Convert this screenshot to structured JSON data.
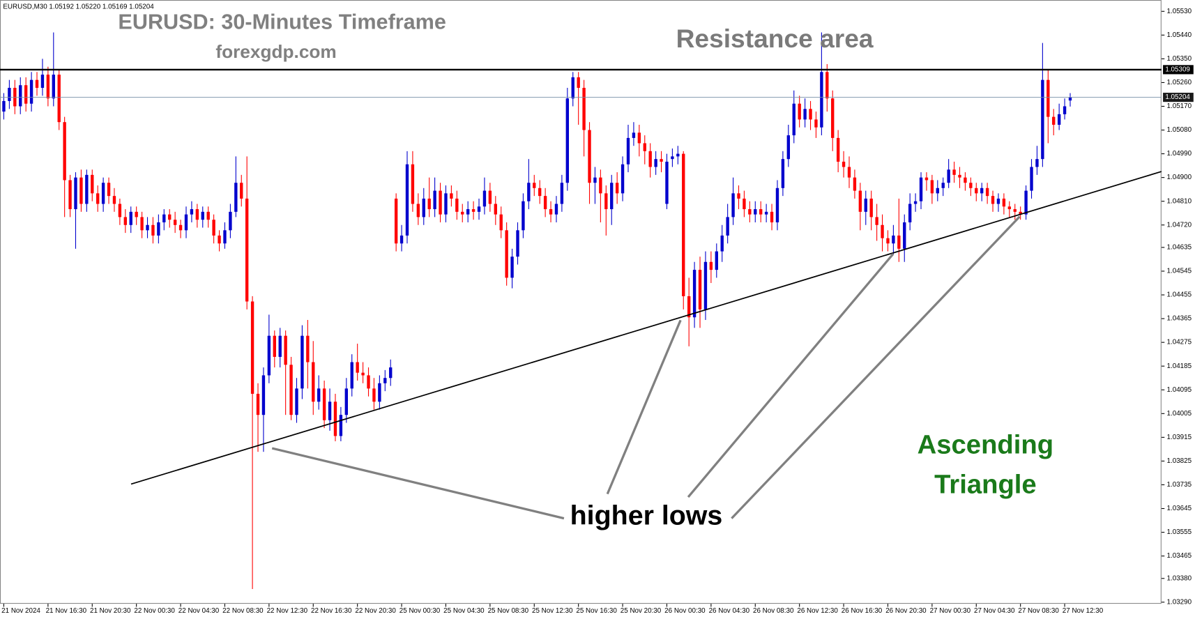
{
  "chart_data": {
    "type": "candlestick",
    "header": "EURUSD,M30  1.05192 1.05220 1.05169 1.05204",
    "title": "EURUSD: 30-Minutes Timeframe",
    "subtitle": "forexgdp.com",
    "annotations": {
      "resistance": "Resistance area",
      "higher_lows": "higher lows",
      "pattern": [
        "Ascending",
        "Triangle"
      ]
    },
    "up_color": "#0000cd",
    "down_color": "#ff0000",
    "ylim": [
      1.03284,
      1.05573
    ],
    "yticks": [
      {
        "value": 1.0553,
        "label": "1.05530"
      },
      {
        "value": 1.0544,
        "label": "1.05440"
      },
      {
        "value": 1.0535,
        "label": "1.05350"
      },
      {
        "value": 1.0526,
        "label": "1.05260"
      },
      {
        "value": 1.0517,
        "label": "1.05170"
      },
      {
        "value": 1.0508,
        "label": "1.05080"
      },
      {
        "value": 1.0499,
        "label": "1.04990"
      },
      {
        "value": 1.049,
        "label": "1.04900"
      },
      {
        "value": 1.0481,
        "label": "1.04810"
      },
      {
        "value": 1.0472,
        "label": "1.04720"
      },
      1.04635,
      1.04545,
      1.04455,
      1.04365,
      1.04275,
      1.04185,
      1.04095,
      1.04005,
      1.03915,
      1.03825,
      1.03735,
      1.03645,
      1.03555,
      1.03465,
      {
        "value": 1.0338,
        "label": "1.03380"
      },
      {
        "value": 1.0329,
        "label": "1.03290"
      }
    ],
    "resistance_level": 1.05309,
    "price_line": 1.05204,
    "categories": [
      "21 Nov 2024",
      null,
      null,
      null,
      null,
      null,
      null,
      null,
      "21 Nov 16:30",
      null,
      null,
      null,
      null,
      null,
      null,
      null,
      "21 Nov 20:30",
      null,
      null,
      null,
      null,
      null,
      null,
      null,
      "22 Nov 00:30",
      null,
      null,
      null,
      null,
      null,
      null,
      null,
      "22 Nov 04:30",
      null,
      null,
      null,
      null,
      null,
      null,
      null,
      "22 Nov 08:30",
      null,
      null,
      null,
      null,
      null,
      null,
      null,
      "22 Nov 12:30",
      null,
      null,
      null,
      null,
      null,
      null,
      null,
      "22 Nov 16:30",
      null,
      null,
      null,
      null,
      null,
      null,
      null,
      "22 Nov 20:30",
      null,
      null,
      null,
      null,
      null,
      null,
      null,
      "25 Nov 00:30",
      null,
      null,
      null,
      null,
      null,
      null,
      null,
      "25 Nov 04:30",
      null,
      null,
      null,
      null,
      null,
      null,
      null,
      "25 Nov 08:30",
      null,
      null,
      null,
      null,
      null,
      null,
      null,
      "25 Nov 12:30",
      null,
      null,
      null,
      null,
      null,
      null,
      null,
      "25 Nov 16:30",
      null,
      null,
      null,
      null,
      null,
      null,
      null,
      "25 Nov 20:30",
      null,
      null,
      null,
      null,
      null,
      null,
      null,
      "26 Nov 00:30",
      null,
      null,
      null,
      null,
      null,
      null,
      null,
      "26 Nov 04:30",
      null,
      null,
      null,
      null,
      null,
      null,
      null,
      "26 Nov 08:30",
      null,
      null,
      null,
      null,
      null,
      null,
      null,
      "26 Nov 12:30",
      null,
      null,
      null,
      null,
      null,
      null,
      null,
      "26 Nov 16:30",
      null,
      null,
      null,
      null,
      null,
      null,
      null,
      "26 Nov 20:30",
      null,
      null,
      null,
      null,
      null,
      null,
      null,
      "27 Nov 00:30",
      null,
      null,
      null,
      null,
      null,
      null,
      null,
      "27 Nov 04:30",
      null,
      null,
      null,
      null,
      null,
      null,
      null,
      "27 Nov 08:30",
      null,
      null,
      null,
      null,
      null,
      null,
      null,
      "27 Nov 12:30",
      null
    ],
    "open": [
      1.0515,
      1.0519,
      1.0524,
      1.0517,
      1.0525,
      1.0518,
      1.0527,
      1.0524,
      1.0529,
      1.052,
      1.0529,
      1.0511,
      1.0489,
      1.0478,
      1.049,
      1.048,
      1.0491,
      1.0484,
      1.048,
      1.0488,
      1.0483,
      1.048,
      1.0475,
      1.0472,
      1.0477,
      1.0475,
      1.047,
      1.0472,
      1.0468,
      1.0473,
      1.0476,
      1.0474,
      1.0472,
      1.047,
      1.0476,
      1.0478,
      1.0474,
      1.0477,
      1.0474,
      1.0468,
      1.0465,
      1.047,
      1.0477,
      1.0488,
      1.0482,
      1.0443,
      1.0408,
      1.04,
      1.0415,
      1.043,
      1.0422,
      1.043,
      1.0419,
      1.04,
      1.041,
      1.043,
      1.042,
      1.0405,
      1.041,
      1.0398,
      1.0405,
      1.0392,
      1.04,
      1.041,
      1.042,
      1.0416,
      1.0415,
      1.041,
      1.0405,
      1.0412,
      1.0414,
      1.0482,
      1.0465,
      1.0468,
      1.0495,
      1.048,
      1.0475,
      1.0482,
      1.0478,
      1.0485,
      1.0476,
      1.0484,
      1.0482,
      1.0477,
      1.0476,
      1.0478,
      1.0477,
      1.0479,
      1.0485,
      1.048,
      1.0476,
      1.047,
      1.0452,
      1.046,
      1.047,
      1.0481,
      1.0488,
      1.0486,
      1.0483,
      1.0478,
      1.0476,
      1.048,
      1.0488,
      1.052,
      1.0528,
      1.0524,
      1.0508,
      1.0488,
      1.049,
      1.0484,
      1.0478,
      1.0488,
      1.0484,
      1.0495,
      1.0505,
      1.0507,
      1.0503,
      1.05,
      1.0494,
      1.0497,
      1.048,
      1.0497,
      1.0498,
      1.0499,
      1.0445,
      1.0437,
      1.0455,
      1.044,
      1.0458,
      1.0455,
      1.0462,
      1.0468,
      1.0475,
      1.0484,
      1.0482,
      1.0478,
      1.0476,
      1.0478,
      1.0476,
      1.0477,
      1.0473,
      1.0486,
      1.0497,
      1.0506,
      1.0518,
      1.0512,
      1.0516,
      1.0512,
      1.0509,
      1.053,
      1.052,
      1.0505,
      1.0496,
      1.0494,
      1.049,
      1.0485,
      1.0477,
      1.0482,
      1.0475,
      1.0472,
      1.0467,
      1.0465,
      1.0468,
      1.0463,
      1.0473,
      1.048,
      1.0481,
      1.049,
      1.0489,
      1.0484,
      1.0486,
      1.0488,
      1.0493,
      1.0491,
      1.049,
      1.0488,
      1.0486,
      1.0484,
      1.0486,
      1.0483,
      1.048,
      1.0482,
      1.0479,
      1.0478,
      1.0477,
      1.0476,
      1.0485,
      1.0494,
      1.0497,
      1.0527,
      1.0513,
      1.051,
      1.0514,
      1.05192
    ],
    "high": [
      1.0522,
      1.0527,
      1.0527,
      1.0528,
      1.0528,
      1.053,
      1.053,
      1.0535,
      1.0532,
      1.0545,
      1.0531,
      1.0513,
      1.0491,
      1.0492,
      1.0493,
      1.0493,
      1.0493,
      1.0487,
      1.049,
      1.049,
      1.0486,
      1.0482,
      1.0478,
      1.0479,
      1.0479,
      1.0477,
      1.0475,
      1.0475,
      1.0476,
      1.0478,
      1.0478,
      1.0477,
      1.0474,
      1.0479,
      1.0481,
      1.048,
      1.0479,
      1.0479,
      1.0476,
      1.047,
      1.0473,
      1.048,
      1.0498,
      1.0491,
      1.0498,
      1.0445,
      1.0412,
      1.0418,
      1.0438,
      1.0432,
      1.0433,
      1.0432,
      1.0422,
      1.0414,
      1.0434,
      1.0436,
      1.0428,
      1.0415,
      1.0413,
      1.041,
      1.0408,
      1.0403,
      1.0414,
      1.0423,
      1.0427,
      1.042,
      1.0418,
      1.0414,
      1.0415,
      1.0417,
      1.0421,
      1.0484,
      1.0472,
      1.05,
      1.05,
      1.0484,
      1.0486,
      1.049,
      1.049,
      1.0488,
      1.0487,
      1.0487,
      1.0485,
      1.048,
      1.0481,
      1.0481,
      1.0482,
      1.049,
      1.0488,
      1.0483,
      1.0479,
      1.0473,
      1.0463,
      1.0473,
      1.0484,
      1.0497,
      1.0491,
      1.0489,
      1.0486,
      1.0481,
      1.0483,
      1.0491,
      1.0524,
      1.053,
      1.053,
      1.0527,
      1.0511,
      1.0494,
      1.0493,
      1.0487,
      1.0491,
      1.0492,
      1.0498,
      1.051,
      1.0511,
      1.051,
      1.0506,
      1.0503,
      1.05,
      1.05,
      1.0499,
      1.0501,
      1.0502,
      1.05,
      1.0452,
      1.0458,
      1.046,
      1.0462,
      1.0462,
      1.0465,
      1.0472,
      1.048,
      1.049,
      1.0487,
      1.0485,
      1.0481,
      1.0481,
      1.0481,
      1.048,
      1.048,
      1.0489,
      1.05,
      1.051,
      1.0523,
      1.0521,
      1.052,
      1.0519,
      1.0515,
      1.0545,
      1.0533,
      1.0523,
      1.0508,
      1.05,
      1.0498,
      1.0493,
      1.0488,
      1.0485,
      1.0485,
      1.048,
      1.0476,
      1.047,
      1.0472,
      1.0482,
      1.0476,
      1.0484,
      1.0484,
      1.0492,
      1.0492,
      1.0491,
      1.0489,
      1.049,
      1.0497,
      1.0496,
      1.0494,
      1.0492,
      1.049,
      1.0488,
      1.0488,
      1.0488,
      1.0485,
      1.0484,
      1.0484,
      1.0481,
      1.048,
      1.0479,
      1.0487,
      1.0497,
      1.0502,
      1.0541,
      1.0531,
      1.0516,
      1.0518,
      1.052,
      1.0522
    ],
    "low": [
      1.0512,
      1.0516,
      1.0514,
      1.0514,
      1.0515,
      1.0515,
      1.0521,
      1.0521,
      1.0517,
      1.0517,
      1.0508,
      1.0475,
      1.0475,
      1.0463,
      1.0477,
      1.0477,
      1.0481,
      1.0477,
      1.0477,
      1.048,
      1.0477,
      1.0472,
      1.0469,
      1.0469,
      1.0472,
      1.0467,
      1.0467,
      1.0465,
      1.0465,
      1.047,
      1.0471,
      1.0469,
      1.0467,
      1.0467,
      1.0473,
      1.0471,
      1.0471,
      1.0471,
      1.0465,
      1.0462,
      1.0463,
      1.0467,
      1.0475,
      1.0479,
      1.044,
      1.0334,
      1.0386,
      1.0386,
      1.0412,
      1.0418,
      1.0418,
      1.04,
      1.0398,
      1.0397,
      1.0406,
      1.041,
      1.04,
      1.0402,
      1.0395,
      1.0394,
      1.039,
      1.039,
      1.0397,
      1.0407,
      1.0413,
      1.0412,
      1.0407,
      1.0402,
      1.0402,
      1.0409,
      1.0411,
      1.0462,
      1.0462,
      1.0465,
      1.0477,
      1.0472,
      1.0472,
      1.0475,
      1.0475,
      1.0473,
      1.0473,
      1.0479,
      1.0474,
      1.0473,
      1.0473,
      1.0474,
      1.0474,
      1.0476,
      1.0477,
      1.0472,
      1.0467,
      1.0449,
      1.0448,
      1.0457,
      1.0467,
      1.0478,
      1.0483,
      1.048,
      1.0475,
      1.0473,
      1.0473,
      1.0477,
      1.0485,
      1.0517,
      1.051,
      1.0498,
      1.048,
      1.048,
      1.0473,
      1.0468,
      1.0472,
      1.048,
      1.0481,
      1.0492,
      1.0502,
      1.0498,
      1.0495,
      1.049,
      1.0491,
      1.0492,
      1.0478,
      1.0494,
      1.0495,
      1.044,
      1.0426,
      1.0433,
      1.0433,
      1.0436,
      1.045,
      1.0452,
      1.0458,
      1.0465,
      1.0472,
      1.0478,
      1.0475,
      1.0473,
      1.0473,
      1.0473,
      1.0473,
      1.047,
      1.047,
      1.0483,
      1.0494,
      1.0503,
      1.0509,
      1.0509,
      1.0508,
      1.0505,
      1.0506,
      1.0515,
      1.05,
      1.0492,
      1.049,
      1.0486,
      1.0482,
      1.047,
      1.0472,
      1.047,
      1.0466,
      1.0462,
      1.0462,
      1.0461,
      1.0458,
      1.0458,
      1.047,
      1.0477,
      1.0478,
      1.0485,
      1.048,
      1.0481,
      1.0483,
      1.0486,
      1.0488,
      1.0486,
      1.0485,
      1.0483,
      1.0481,
      1.0481,
      1.048,
      1.0477,
      1.0477,
      1.0476,
      1.0475,
      1.0474,
      1.0474,
      1.0474,
      1.0482,
      1.0491,
      1.0494,
      1.0503,
      1.0506,
      1.0508,
      1.0512,
      1.05169
    ],
    "close": [
      1.0519,
      1.0524,
      1.0517,
      1.0525,
      1.0518,
      1.0527,
      1.0524,
      1.0529,
      1.052,
      1.0529,
      1.0511,
      1.0489,
      1.0478,
      1.049,
      1.048,
      1.0491,
      1.0484,
      1.048,
      1.0488,
      1.0483,
      1.048,
      1.0475,
      1.0472,
      1.0477,
      1.0475,
      1.047,
      1.0472,
      1.0468,
      1.0473,
      1.0476,
      1.0474,
      1.0472,
      1.047,
      1.0476,
      1.0478,
      1.0474,
      1.0477,
      1.0474,
      1.0468,
      1.0465,
      1.047,
      1.0477,
      1.0488,
      1.0482,
      1.0443,
      1.0408,
      1.04,
      1.0415,
      1.043,
      1.0422,
      1.043,
      1.0419,
      1.04,
      1.041,
      1.043,
      1.042,
      1.0405,
      1.041,
      1.0398,
      1.0405,
      1.0392,
      1.04,
      1.041,
      1.042,
      1.0416,
      1.0415,
      1.041,
      1.0405,
      1.0412,
      1.0414,
      1.0418,
      1.0465,
      1.0468,
      1.0495,
      1.048,
      1.0475,
      1.0482,
      1.0478,
      1.0485,
      1.0476,
      1.0484,
      1.0482,
      1.0477,
      1.0476,
      1.0478,
      1.0477,
      1.0479,
      1.0485,
      1.048,
      1.0476,
      1.047,
      1.0452,
      1.046,
      1.047,
      1.0481,
      1.0488,
      1.0486,
      1.0483,
      1.0478,
      1.0476,
      1.048,
      1.0488,
      1.052,
      1.0528,
      1.0524,
      1.0508,
      1.0488,
      1.049,
      1.0484,
      1.0478,
      1.0488,
      1.0484,
      1.0495,
      1.0505,
      1.0507,
      1.0503,
      1.05,
      1.0494,
      1.0497,
      1.0496,
      1.0496,
      1.0498,
      1.0499,
      1.0445,
      1.0437,
      1.0455,
      1.044,
      1.0458,
      1.0455,
      1.0462,
      1.0468,
      1.0475,
      1.0484,
      1.0482,
      1.0478,
      1.0476,
      1.0478,
      1.0476,
      1.0477,
      1.0473,
      1.0486,
      1.0497,
      1.0506,
      1.0518,
      1.0512,
      1.0516,
      1.0512,
      1.0509,
      1.053,
      1.052,
      1.0505,
      1.0496,
      1.0494,
      1.049,
      1.0485,
      1.0477,
      1.0482,
      1.0475,
      1.0472,
      1.0467,
      1.0465,
      1.0468,
      1.0463,
      1.0473,
      1.048,
      1.0481,
      1.049,
      1.0489,
      1.0484,
      1.0486,
      1.0488,
      1.0493,
      1.0491,
      1.049,
      1.0488,
      1.0486,
      1.0484,
      1.0486,
      1.0483,
      1.048,
      1.0482,
      1.0479,
      1.0478,
      1.0477,
      1.0476,
      1.0485,
      1.0494,
      1.0497,
      1.0527,
      1.0513,
      1.051,
      1.0514,
      1.0517,
      1.05204
    ]
  }
}
